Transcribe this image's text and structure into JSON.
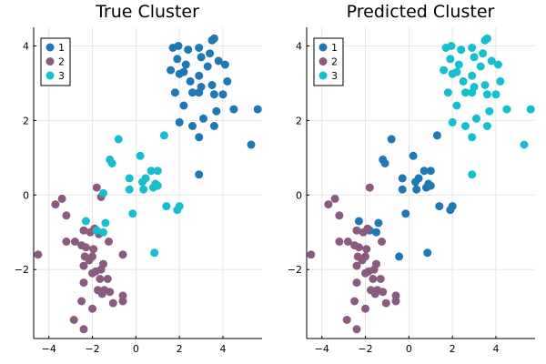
{
  "colors": {
    "1": "#1f77b4",
    "2": "#8b5b7f",
    "3": "#17becf"
  },
  "chart_data": [
    {
      "type": "scatter",
      "title": "True Cluster",
      "xlim": [
        -4.7,
        5.8
      ],
      "ylim": [
        -3.85,
        4.5
      ],
      "xticks": [
        -4,
        -2,
        0,
        2,
        4
      ],
      "yticks": [
        -2,
        0,
        2,
        4
      ],
      "tick_labels_x": [
        "−4",
        "−2",
        "0",
        "2",
        "4"
      ],
      "tick_labels_y": [
        "−2",
        "0",
        "2",
        "4"
      ],
      "grid": true,
      "legend_position": "top-left",
      "series": [
        {
          "name": "1",
          "points": [
            [
              1.7,
              3.95
            ],
            [
              1.95,
              4.0
            ],
            [
              2.4,
              3.9
            ],
            [
              2.9,
              3.95
            ],
            [
              3.5,
              4.15
            ],
            [
              3.6,
              4.2
            ],
            [
              1.9,
              3.65
            ],
            [
              2.3,
              3.5
            ],
            [
              3.0,
              3.7
            ],
            [
              3.4,
              3.8
            ],
            [
              3.8,
              3.6
            ],
            [
              1.6,
              3.35
            ],
            [
              2.0,
              3.25
            ],
            [
              2.2,
              3.3
            ],
            [
              2.9,
              3.2
            ],
            [
              3.3,
              3.45
            ],
            [
              4.1,
              3.5
            ],
            [
              2.5,
              3.05
            ],
            [
              3.0,
              2.9
            ],
            [
              3.5,
              2.95
            ],
            [
              4.2,
              3.05
            ],
            [
              1.8,
              2.75
            ],
            [
              2.6,
              2.75
            ],
            [
              2.9,
              2.75
            ],
            [
              3.6,
              2.7
            ],
            [
              4.0,
              2.7
            ],
            [
              2.2,
              2.4
            ],
            [
              3.7,
              2.25
            ],
            [
              4.5,
              2.3
            ],
            [
              5.6,
              2.3
            ],
            [
              3.1,
              2.05
            ],
            [
              2.0,
              1.95
            ],
            [
              2.6,
              1.85
            ],
            [
              3.6,
              1.85
            ],
            [
              2.9,
              1.55
            ],
            [
              5.3,
              1.35
            ],
            [
              2.9,
              0.55
            ]
          ]
        },
        {
          "name": "2",
          "points": [
            [
              -3.7,
              -0.25
            ],
            [
              -3.4,
              -0.1
            ],
            [
              -1.8,
              0.2
            ],
            [
              -1.6,
              -0.05
            ],
            [
              -3.2,
              -0.55
            ],
            [
              -2.4,
              -0.95
            ],
            [
              -2.1,
              -1.0
            ],
            [
              -1.9,
              -0.9
            ],
            [
              -1.7,
              -1.05
            ],
            [
              -2.8,
              -1.25
            ],
            [
              -3.2,
              -1.25
            ],
            [
              -2.5,
              -1.35
            ],
            [
              -2.3,
              -1.4
            ],
            [
              -1.95,
              -1.45
            ],
            [
              -1.25,
              -1.25
            ],
            [
              -4.5,
              -1.6
            ],
            [
              -2.35,
              -1.65
            ],
            [
              -2.0,
              -1.65
            ],
            [
              -2.15,
              -1.75
            ],
            [
              -2.4,
              -1.9
            ],
            [
              -1.5,
              -1.85
            ],
            [
              -0.6,
              -1.6
            ],
            [
              -1.6,
              -2.0
            ],
            [
              -2.0,
              -2.1
            ],
            [
              -1.85,
              -2.05
            ],
            [
              -1.65,
              -2.25
            ],
            [
              -1.3,
              -2.25
            ],
            [
              -2.4,
              -2.35
            ],
            [
              -1.45,
              -2.55
            ],
            [
              -1.75,
              -2.55
            ],
            [
              -1.55,
              -2.65
            ],
            [
              -1.2,
              -2.6
            ],
            [
              -0.6,
              -2.7
            ],
            [
              -0.6,
              -2.85
            ],
            [
              -1.05,
              -2.9
            ],
            [
              -2.5,
              -2.85
            ],
            [
              -2.0,
              -3.05
            ],
            [
              -2.85,
              -3.35
            ],
            [
              -2.4,
              -3.6
            ]
          ]
        },
        {
          "name": "3",
          "points": [
            [
              -0.8,
              1.5
            ],
            [
              1.3,
              1.6
            ],
            [
              0.2,
              1.05
            ],
            [
              -1.2,
              0.95
            ],
            [
              -1.1,
              0.85
            ],
            [
              0.7,
              0.65
            ],
            [
              1.0,
              0.65
            ],
            [
              -0.3,
              0.45
            ],
            [
              0.45,
              0.45
            ],
            [
              0.3,
              0.35
            ],
            [
              0.9,
              0.3
            ],
            [
              0.8,
              0.2
            ],
            [
              1.0,
              0.25
            ],
            [
              -0.3,
              0.15
            ],
            [
              0.35,
              0.15
            ],
            [
              -1.5,
              0.05
            ],
            [
              1.4,
              -0.3
            ],
            [
              2.0,
              -0.3
            ],
            [
              1.9,
              -0.4
            ],
            [
              -0.15,
              -0.5
            ],
            [
              -2.3,
              -0.7
            ],
            [
              -1.4,
              -0.75
            ],
            [
              -1.8,
              -0.95
            ],
            [
              -1.5,
              -1.0
            ],
            [
              0.85,
              -1.55
            ]
          ]
        }
      ]
    },
    {
      "type": "scatter",
      "title": "Predicted Cluster",
      "xlim": [
        -4.7,
        5.8
      ],
      "ylim": [
        -3.85,
        4.5
      ],
      "xticks": [
        -4,
        -2,
        0,
        2,
        4
      ],
      "yticks": [
        -2,
        0,
        2,
        4
      ],
      "tick_labels_x": [
        "−4",
        "−2",
        "0",
        "2",
        "4"
      ],
      "tick_labels_y": [
        "−2",
        "0",
        "2",
        "4"
      ],
      "grid": true,
      "legend_position": "top-left",
      "series": [
        {
          "name": "1",
          "points": [
            [
              -0.8,
              1.5
            ],
            [
              1.3,
              1.6
            ],
            [
              0.2,
              1.05
            ],
            [
              -1.2,
              0.95
            ],
            [
              -1.1,
              0.85
            ],
            [
              0.7,
              0.65
            ],
            [
              1.0,
              0.65
            ],
            [
              -0.3,
              0.45
            ],
            [
              0.45,
              0.45
            ],
            [
              0.3,
              0.35
            ],
            [
              0.9,
              0.3
            ],
            [
              0.8,
              0.2
            ],
            [
              1.0,
              0.25
            ],
            [
              -0.3,
              0.15
            ],
            [
              0.35,
              0.15
            ],
            [
              1.4,
              -0.3
            ],
            [
              2.0,
              -0.3
            ],
            [
              1.9,
              -0.4
            ],
            [
              -0.15,
              -0.5
            ],
            [
              -2.3,
              -0.7
            ],
            [
              -1.4,
              -0.75
            ],
            [
              -1.8,
              -0.95
            ],
            [
              -1.5,
              -1.0
            ],
            [
              -0.45,
              -1.65
            ],
            [
              0.85,
              -1.55
            ]
          ]
        },
        {
          "name": "2",
          "points": [
            [
              -3.7,
              -0.25
            ],
            [
              -3.4,
              -0.1
            ],
            [
              -1.8,
              0.2
            ],
            [
              -3.2,
              -0.55
            ],
            [
              -2.4,
              -0.95
            ],
            [
              -2.1,
              -1.0
            ],
            [
              -1.9,
              -0.9
            ],
            [
              -2.8,
              -1.25
            ],
            [
              -3.2,
              -1.25
            ],
            [
              -2.5,
              -1.35
            ],
            [
              -2.3,
              -1.4
            ],
            [
              -1.95,
              -1.45
            ],
            [
              -1.25,
              -1.25
            ],
            [
              -4.5,
              -1.6
            ],
            [
              -2.35,
              -1.65
            ],
            [
              -2.0,
              -1.65
            ],
            [
              -2.15,
              -1.75
            ],
            [
              -2.4,
              -1.9
            ],
            [
              -1.5,
              -1.85
            ],
            [
              -1.6,
              -2.0
            ],
            [
              -2.0,
              -2.1
            ],
            [
              -1.85,
              -2.05
            ],
            [
              -1.65,
              -2.25
            ],
            [
              -1.3,
              -2.25
            ],
            [
              -2.4,
              -2.35
            ],
            [
              -1.45,
              -2.55
            ],
            [
              -1.75,
              -2.55
            ],
            [
              -1.55,
              -2.65
            ],
            [
              -1.2,
              -2.6
            ],
            [
              -0.6,
              -2.7
            ],
            [
              -0.6,
              -2.85
            ],
            [
              -1.05,
              -2.9
            ],
            [
              -2.5,
              -2.85
            ],
            [
              -2.0,
              -3.05
            ],
            [
              -2.85,
              -3.35
            ],
            [
              -2.4,
              -3.6
            ]
          ]
        },
        {
          "name": "3",
          "points": [
            [
              1.7,
              3.95
            ],
            [
              1.95,
              4.0
            ],
            [
              2.4,
              3.9
            ],
            [
              2.9,
              3.95
            ],
            [
              3.5,
              4.15
            ],
            [
              3.6,
              4.2
            ],
            [
              1.9,
              3.65
            ],
            [
              2.3,
              3.5
            ],
            [
              3.0,
              3.7
            ],
            [
              3.4,
              3.8
            ],
            [
              3.8,
              3.6
            ],
            [
              1.6,
              3.35
            ],
            [
              2.0,
              3.25
            ],
            [
              2.2,
              3.3
            ],
            [
              2.9,
              3.2
            ],
            [
              3.3,
              3.45
            ],
            [
              4.1,
              3.5
            ],
            [
              2.5,
              3.05
            ],
            [
              3.0,
              2.9
            ],
            [
              3.5,
              2.95
            ],
            [
              4.2,
              3.05
            ],
            [
              1.8,
              2.75
            ],
            [
              2.6,
              2.75
            ],
            [
              2.9,
              2.75
            ],
            [
              3.6,
              2.7
            ],
            [
              4.0,
              2.7
            ],
            [
              2.2,
              2.4
            ],
            [
              3.7,
              2.25
            ],
            [
              4.5,
              2.3
            ],
            [
              5.6,
              2.3
            ],
            [
              3.1,
              2.05
            ],
            [
              2.0,
              1.95
            ],
            [
              2.6,
              1.85
            ],
            [
              3.6,
              1.85
            ],
            [
              2.9,
              1.55
            ],
            [
              5.3,
              1.35
            ],
            [
              2.9,
              0.55
            ]
          ]
        }
      ]
    }
  ]
}
